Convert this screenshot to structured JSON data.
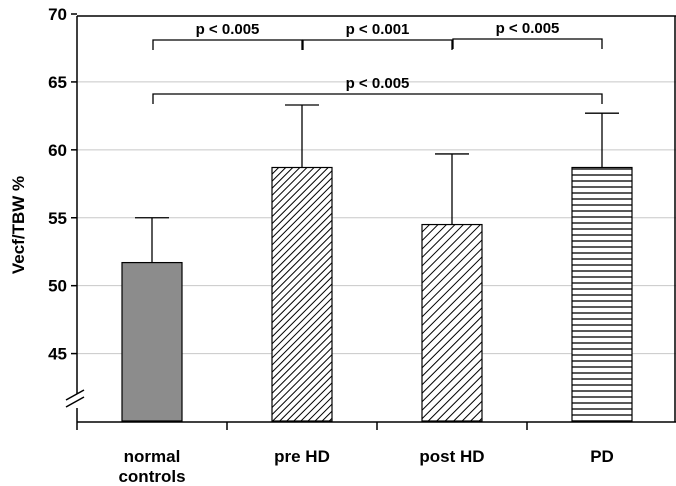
{
  "chart_data": {
    "type": "bar",
    "title": "",
    "xlabel": "",
    "ylabel": "Vecf/TBW %",
    "ylim": [
      40,
      70
    ],
    "yticks": [
      45,
      50,
      55,
      60,
      65,
      70
    ],
    "axis_break": true,
    "grid": true,
    "categories": [
      [
        "normal",
        "controls"
      ],
      [
        "pre HD"
      ],
      [
        "post HD"
      ],
      [
        "PD"
      ]
    ],
    "values": [
      51.7,
      58.7,
      54.5,
      58.7
    ],
    "errors": [
      3.3,
      4.6,
      5.2,
      4.0
    ],
    "fills": [
      "solid-gray",
      "diagonal-dense",
      "diagonal",
      "horizontal"
    ],
    "colors": {
      "solid": "#8c8c8c",
      "grid": "#c8c8c8"
    },
    "significance": [
      {
        "from": 0,
        "to": 1,
        "label": "p < 0.005"
      },
      {
        "from": 1,
        "to": 2,
        "label": "p < 0.001"
      },
      {
        "from": 2,
        "to": 3,
        "label": "p < 0.005"
      },
      {
        "from": 0,
        "to": 3,
        "label": "p < 0.005"
      }
    ]
  }
}
